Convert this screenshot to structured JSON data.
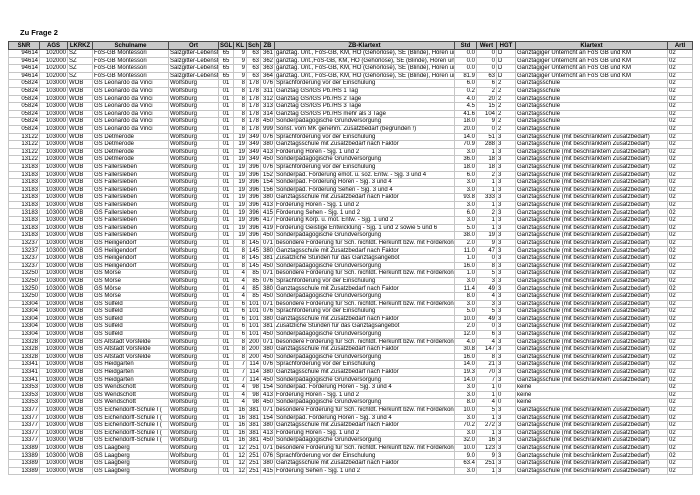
{
  "page": {
    "title": "Zu Frage 2"
  },
  "colors": {
    "header_bg": "#c9c9c9",
    "grid": "#c6c6c6",
    "header_border": "#4a4a4a",
    "text": "#000000",
    "page_bg": "#ffffff"
  },
  "table": {
    "columns": [
      {
        "key": "snr",
        "label": "SNR"
      },
      {
        "key": "ags",
        "label": "AGS"
      },
      {
        "key": "lkrkz",
        "label": "LKRKZ"
      },
      {
        "key": "schulname",
        "label": "Schulname"
      },
      {
        "key": "ort",
        "label": "Ort"
      },
      {
        "key": "sgl",
        "label": "SGL"
      },
      {
        "key": "kl",
        "label": "KL"
      },
      {
        "key": "sch",
        "label": "Sch"
      },
      {
        "key": "zb",
        "label": "ZB"
      },
      {
        "key": "zb_klartext",
        "label": "ZB-Klartext"
      },
      {
        "key": "std",
        "label": "Std"
      },
      {
        "key": "wert",
        "label": "Wert"
      },
      {
        "key": "hgt",
        "label": "HGT"
      },
      {
        "key": "klartext",
        "label": "Klartext"
      },
      {
        "key": "artl",
        "label": "Artl"
      }
    ],
    "rows": [
      [
        "94614",
        "102000",
        "SZ",
        "FöS-GB Montessori",
        "Salzgitter-Lebenstedt",
        "65",
        "9",
        "63",
        "361",
        "ganztäg. Unt., FöS-GB, KM, HÖ (Gehörlose), SE (Blinde), Hören und Sehen",
        "0.0",
        "0",
        "D",
        "Ganztägiger Unterricht an FöS GB und KM",
        "02"
      ],
      [
        "94614",
        "102000",
        "SZ",
        "FöS-GB Montessori",
        "Salzgitter-Lebenstedt",
        "65",
        "9",
        "63",
        "362",
        "ganztäg. Unt.,FöS-GB, KM, HÖ (Gehörlose), SE (Blinde), Hören und Sehen",
        "0.0",
        "0",
        "D",
        "Ganztägiger Unterricht an FöS GB und KM",
        "02"
      ],
      [
        "94614",
        "102000",
        "SZ",
        "FöS-GB Montessori",
        "Salzgitter-Lebenstedt",
        "65",
        "9",
        "63",
        "363",
        "ganztäg. Unt., FöS-GB, KM, HÖ (Gehörlose), SE (Blinde), Hören und Sehen",
        "0.0",
        "0",
        "D",
        "Ganztägiger Unterricht an FöS GB und KM",
        "02"
      ],
      [
        "94614",
        "102000",
        "SZ",
        "FöS-GB Montessori",
        "Salzgitter-Lebenstedt",
        "65",
        "9",
        "63",
        "364",
        "ganztäg. Unt., FöS-GB, KM, HÖ (Gehörlose), SE (Blinde), Hören und Sehen",
        "81.9",
        "63",
        "D",
        "Ganztägiger Unterricht an FöS GB und KM",
        "02"
      ],
      [
        "05824",
        "103000",
        "WOB",
        "GS Leonardo da Vinci",
        "Wolfsburg",
        "01",
        "8",
        "178",
        "076",
        "Sprachförderung vor der Einschulung",
        "6.0",
        "6",
        "2",
        "Ganztagsschule",
        "02"
      ],
      [
        "05824",
        "103000",
        "WOB",
        "GS Leonardo da Vinci",
        "Wolfsburg",
        "01",
        "8",
        "178",
        "311",
        "Ganztag GS/IGS Pb./HS 1 Tag",
        "0.2",
        "2",
        "2",
        "Ganztagsschule",
        "02"
      ],
      [
        "05824",
        "103000",
        "WOB",
        "GS Leonardo da Vinci",
        "Wolfsburg",
        "01",
        "8",
        "178",
        "312",
        "Ganztag GS/IGS Pb./HS 2 Tage",
        "4.0",
        "20",
        "2",
        "Ganztagsschule",
        "02"
      ],
      [
        "05824",
        "103000",
        "WOB",
        "GS Leonardo da Vinci",
        "Wolfsburg",
        "01",
        "8",
        "178",
        "313",
        "Ganztag GS/IGS Pb./HS 3 Tage",
        "4.5",
        "15",
        "2",
        "Ganztagsschule",
        "02"
      ],
      [
        "05824",
        "103000",
        "WOB",
        "GS Leonardo da Vinci",
        "Wolfsburg",
        "01",
        "8",
        "178",
        "314",
        "Ganztag GS/IGS Pb./HS mehr als 3 Tage",
        "41.6",
        "104",
        "2",
        "Ganztagsschule",
        "02"
      ],
      [
        "05824",
        "103000",
        "WOB",
        "GS Leonardo da Vinci",
        "Wolfsburg",
        "01",
        "8",
        "178",
        "450",
        "Sonderpädagogische Grundversorgung",
        "18.0",
        "9",
        "2",
        "Ganztagsschule",
        "02"
      ],
      [
        "05824",
        "103000",
        "WOB",
        "GS Leonardo da Vinci",
        "Wolfsburg",
        "01",
        "8",
        "178",
        "999",
        "Sonst. vom MK genehm. Zusatzbedarf (begründen !)",
        "20.0",
        "0",
        "2",
        "Ganztagsschule",
        "02"
      ],
      [
        "13122",
        "103000",
        "WOB",
        "GS Detmerode",
        "Wolfsburg",
        "01",
        "19",
        "349",
        "076",
        "Sprachförderung vor der Einschulung",
        "14.0",
        "51",
        "3",
        "Ganztagsschule (mit beschränktem Zusatzbedarf)",
        "02"
      ],
      [
        "13122",
        "103000",
        "WOB",
        "GS Detmerode",
        "Wolfsburg",
        "01",
        "19",
        "349",
        "380",
        "Ganztagsschule mit Zusatzbedarf nach Faktor",
        "70.9",
        "288",
        "3",
        "Ganztagsschule (mit beschränktem Zusatzbedarf)",
        "02"
      ],
      [
        "13122",
        "103000",
        "WOB",
        "GS Detmerode",
        "Wolfsburg",
        "01",
        "19",
        "349",
        "413",
        "Förderung Hören - Sjg. 1 und 2",
        "3.0",
        "1",
        "3",
        "Ganztagsschule (mit beschränktem Zusatzbedarf)",
        "02"
      ],
      [
        "13122",
        "103000",
        "WOB",
        "GS Detmerode",
        "Wolfsburg",
        "01",
        "19",
        "349",
        "450",
        "Sonderpädagogische Grundversorgung",
        "36.0",
        "18",
        "3",
        "Ganztagsschule (mit beschränktem Zusatzbedarf)",
        "02"
      ],
      [
        "13183",
        "103000",
        "WOB",
        "GS Fallersleben",
        "Wolfsburg",
        "01",
        "19",
        "396",
        "076",
        "Sprachförderung vor der Einschulung",
        "18.0",
        "18",
        "3",
        "Ganztagsschule (mit beschränktem Zusatzbedarf)",
        "02"
      ],
      [
        "13183",
        "103000",
        "WOB",
        "GS Fallersleben",
        "Wolfsburg",
        "01",
        "19",
        "396",
        "152",
        "Sonderpäd. Förderung emot. u. soz. Entw. - Sjg. 3 und 4",
        "6.0",
        "2",
        "3",
        "Ganztagsschule (mit beschränktem Zusatzbedarf)",
        "02"
      ],
      [
        "13183",
        "103000",
        "WOB",
        "GS Fallersleben",
        "Wolfsburg",
        "01",
        "19",
        "396",
        "154",
        "Sonderpäd. Förderung Hören - Sjg. 3 und 4",
        "3.0",
        "1",
        "3",
        "Ganztagsschule (mit beschränktem Zusatzbedarf)",
        "02"
      ],
      [
        "13183",
        "103000",
        "WOB",
        "GS Fallersleben",
        "Wolfsburg",
        "01",
        "19",
        "396",
        "156",
        "Sonderpäd. Förderung Sehen - Sjg. 3 und 4",
        "3.0",
        "1",
        "3",
        "Ganztagsschule (mit beschränktem Zusatzbedarf)",
        "02"
      ],
      [
        "13183",
        "103000",
        "WOB",
        "GS Fallersleben",
        "Wolfsburg",
        "01",
        "19",
        "396",
        "380",
        "Ganztagsschule mit Zusatzbedarf nach Faktor",
        "93.8",
        "333",
        "3",
        "Ganztagsschule (mit beschränktem Zusatzbedarf)",
        "02"
      ],
      [
        "13183",
        "103000",
        "WOB",
        "GS Fallersleben",
        "Wolfsburg",
        "01",
        "19",
        "396",
        "413",
        "Förderung Hören - Sjg. 1 und 2",
        "3.0",
        "1",
        "3",
        "Ganztagsschule (mit beschränktem Zusatzbedarf)",
        "02"
      ],
      [
        "13183",
        "103000",
        "WOB",
        "GS Fallersleben",
        "Wolfsburg",
        "01",
        "19",
        "396",
        "415",
        "Förderung Sehen - Sjg. 1 und 2",
        "6.0",
        "2",
        "3",
        "Ganztagsschule (mit beschränktem Zusatzbedarf)",
        "02"
      ],
      [
        "13183",
        "103000",
        "WOB",
        "GS Fallersleben",
        "Wolfsburg",
        "01",
        "19",
        "396",
        "417",
        "Förderung Körp. u. mot. Entw. - Sjg. 1 und 2",
        "3.0",
        "1",
        "3",
        "Ganztagsschule (mit beschränktem Zusatzbedarf)",
        "02"
      ],
      [
        "13183",
        "103000",
        "WOB",
        "GS Fallersleben",
        "Wolfsburg",
        "01",
        "19",
        "396",
        "419",
        "Förderung Geistige Entwicklung - Sjg. 1 und 2 sowie 5 und 6",
        "5.0",
        "1",
        "3",
        "Ganztagsschule (mit beschränktem Zusatzbedarf)",
        "02"
      ],
      [
        "13183",
        "103000",
        "WOB",
        "GS Fallersleben",
        "Wolfsburg",
        "01",
        "19",
        "396",
        "450",
        "Sonderpädagogische Grundversorgung",
        "38.0",
        "19",
        "3",
        "Ganztagsschule (mit beschränktem Zusatzbedarf)",
        "02"
      ],
      [
        "13237",
        "103000",
        "WOB",
        "GS Heiligendorf",
        "Wolfsburg",
        "01",
        "8",
        "145",
        "071",
        "besondere Förderung für Sch. nichtdt. Herkunft bzw. mit Förderkonzept",
        "2.0",
        "9",
        "3",
        "Ganztagsschule (mit beschränktem Zusatzbedarf)",
        "02"
      ],
      [
        "13237",
        "103000",
        "WOB",
        "GS Heiligendorf",
        "Wolfsburg",
        "01",
        "8",
        "145",
        "380",
        "Ganztagsschule mit Zusatzbedarf nach Faktor",
        "11.0",
        "47",
        "3",
        "Ganztagsschule (mit beschränktem Zusatzbedarf)",
        "02"
      ],
      [
        "13237",
        "103000",
        "WOB",
        "GS Heiligendorf",
        "Wolfsburg",
        "01",
        "8",
        "145",
        "381",
        "Zusätzliche Stunden für das Ganztagsangebot",
        "1.0",
        "0",
        "3",
        "Ganztagsschule (mit beschränktem Zusatzbedarf)",
        "02"
      ],
      [
        "13237",
        "103000",
        "WOB",
        "GS Heiligendorf",
        "Wolfsburg",
        "01",
        "8",
        "145",
        "450",
        "Sonderpädagogische Grundversorgung",
        "16.0",
        "8",
        "3",
        "Ganztagsschule (mit beschränktem Zusatzbedarf)",
        "02"
      ],
      [
        "13250",
        "103000",
        "WOB",
        "GS Mörse",
        "Wolfsburg",
        "01",
        "4",
        "85",
        "071",
        "besondere Förderung für Sch. nichtdt. Herkunft bzw. mit Förderkonzept",
        "1.0",
        "5",
        "3",
        "Ganztagsschule (mit beschränktem Zusatzbedarf)",
        "02"
      ],
      [
        "13250",
        "103000",
        "WOB",
        "GS Mörse",
        "Wolfsburg",
        "01",
        "4",
        "85",
        "076",
        "Sprachförderung vor der Einschulung",
        "3.0",
        "3",
        "3",
        "Ganztagsschule (mit beschränktem Zusatzbedarf)",
        "02"
      ],
      [
        "13250",
        "103000",
        "WOB",
        "GS Mörse",
        "Wolfsburg",
        "01",
        "4",
        "85",
        "380",
        "Ganztagsschule mit Zusatzbedarf nach Faktor",
        "11.4",
        "49",
        "3",
        "Ganztagsschule (mit beschränktem Zusatzbedarf)",
        "02"
      ],
      [
        "13250",
        "103000",
        "WOB",
        "GS Mörse",
        "Wolfsburg",
        "01",
        "4",
        "85",
        "450",
        "Sonderpädagogische Grundversorgung",
        "8.0",
        "4",
        "3",
        "Ganztagsschule (mit beschränktem Zusatzbedarf)",
        "02"
      ],
      [
        "13304",
        "103000",
        "WOB",
        "GS Sülfeld",
        "Wolfsburg",
        "01",
        "6",
        "101",
        "071",
        "besondere Förderung für Sch. nichtdt. Herkunft bzw. mit Förderkonzept",
        "3.0",
        "3",
        "3",
        "Ganztagsschule (mit beschränktem Zusatzbedarf)",
        "02"
      ],
      [
        "13304",
        "103000",
        "WOB",
        "GS Sülfeld",
        "Wolfsburg",
        "01",
        "6",
        "101",
        "076",
        "Sprachförderung vor der Einschulung",
        "5.0",
        "5",
        "3",
        "Ganztagsschule (mit beschränktem Zusatzbedarf)",
        "02"
      ],
      [
        "13304",
        "103000",
        "WOB",
        "GS Sülfeld",
        "Wolfsburg",
        "01",
        "6",
        "101",
        "380",
        "Ganztagsschule mit Zusatzbedarf nach Faktor",
        "10.0",
        "49",
        "3",
        "Ganztagsschule (mit beschränktem Zusatzbedarf)",
        "02"
      ],
      [
        "13304",
        "103000",
        "WOB",
        "GS Sülfeld",
        "Wolfsburg",
        "01",
        "6",
        "101",
        "381",
        "Zusätzliche Stunden für das Ganztagsangebot",
        "2.0",
        "0",
        "3",
        "Ganztagsschule (mit beschränktem Zusatzbedarf)",
        "02"
      ],
      [
        "13304",
        "103000",
        "WOB",
        "GS Sülfeld",
        "Wolfsburg",
        "01",
        "6",
        "101",
        "450",
        "Sonderpädagogische Grundversorgung",
        "12.0",
        "6",
        "3",
        "Ganztagsschule (mit beschränktem Zusatzbedarf)",
        "02"
      ],
      [
        "13328",
        "103000",
        "WOB",
        "GS Altstadt Vorsfelde",
        "Wolfsburg",
        "01",
        "8",
        "200",
        "071",
        "besondere Förderung für Sch. nichtdt. Herkunft bzw. mit Förderkonzept",
        "4.0",
        "4",
        "3",
        "Ganztagsschule (mit beschränktem Zusatzbedarf)",
        "02"
      ],
      [
        "13328",
        "103000",
        "WOB",
        "GS Altstadt Vorsfelde",
        "Wolfsburg",
        "01",
        "8",
        "200",
        "380",
        "Ganztagsschule mit Zusatzbedarf nach Faktor",
        "30.8",
        "147",
        "3",
        "Ganztagsschule (mit beschränktem Zusatzbedarf)",
        "02"
      ],
      [
        "13328",
        "103000",
        "WOB",
        "GS Altstadt Vorsfelde",
        "Wolfsburg",
        "01",
        "8",
        "200",
        "450",
        "Sonderpädagogische Grundversorgung",
        "16.0",
        "8",
        "3",
        "Ganztagsschule (mit beschränktem Zusatzbedarf)",
        "02"
      ],
      [
        "13341",
        "103000",
        "WOB",
        "GS Heidgarten",
        "Wolfsburg",
        "01",
        "7",
        "114",
        "076",
        "Sprachförderung vor der Einschulung",
        "14.0",
        "21",
        "3",
        "Ganztagsschule (mit beschränktem Zusatzbedarf)",
        "02"
      ],
      [
        "13341",
        "103000",
        "WOB",
        "GS Heidgarten",
        "Wolfsburg",
        "01",
        "7",
        "114",
        "380",
        "Ganztagsschule mit Zusatzbedarf nach Faktor",
        "19.3",
        "70",
        "3",
        "Ganztagsschule (mit beschränktem Zusatzbedarf)",
        "02"
      ],
      [
        "13341",
        "103000",
        "WOB",
        "GS Heidgarten",
        "Wolfsburg",
        "01",
        "7",
        "114",
        "450",
        "Sonderpädagogische Grundversorgung",
        "14.0",
        "7",
        "3",
        "Ganztagsschule (mit beschränktem Zusatzbedarf)",
        "02"
      ],
      [
        "13353",
        "103000",
        "WOB",
        "GS Wendschott",
        "Wolfsburg",
        "01",
        "4",
        "98",
        "154",
        "Sonderpäd. Förderung Hören - Sjg. 3 und 4",
        "3.0",
        "1",
        "0",
        "keine",
        "02"
      ],
      [
        "13353",
        "103000",
        "WOB",
        "GS Wendschott",
        "Wolfsburg",
        "01",
        "4",
        "98",
        "413",
        "Förderung Hören - Sjg. 1 und 2",
        "3.0",
        "1",
        "0",
        "keine",
        "02"
      ],
      [
        "13353",
        "103000",
        "WOB",
        "GS Wendschott",
        "Wolfsburg",
        "01",
        "4",
        "98",
        "450",
        "Sonderpädagogische Grundversorgung",
        "8.0",
        "4",
        "0",
        "keine",
        "02"
      ],
      [
        "13377",
        "103000",
        "WOB",
        "GS Eichendorff-Schule I (",
        "Wolfsburg",
        "01",
        "16",
        "381",
        "071",
        "besondere Förderung für Sch. nichtdt. Herkunft bzw. mit Förderkonzept",
        "10.0",
        "5",
        "3",
        "Ganztagsschule (mit beschränktem Zusatzbedarf)",
        "02"
      ],
      [
        "13377",
        "103000",
        "WOB",
        "GS Eichendorff-Schule I (",
        "Wolfsburg",
        "01",
        "16",
        "381",
        "154",
        "Sonderpäd. Förderung Hören - Sjg. 3 und 4",
        "3.0",
        "1",
        "3",
        "Ganztagsschule (mit beschränktem Zusatzbedarf)",
        "02"
      ],
      [
        "13377",
        "103000",
        "WOB",
        "GS Eichendorff-Schule I (",
        "Wolfsburg",
        "01",
        "16",
        "381",
        "380",
        "Ganztagsschule mit Zusatzbedarf nach Faktor",
        "70.2",
        "272",
        "3",
        "Ganztagsschule (mit beschränktem Zusatzbedarf)",
        "02"
      ],
      [
        "13377",
        "103000",
        "WOB",
        "GS Eichendorff-Schule I (",
        "Wolfsburg",
        "01",
        "16",
        "381",
        "413",
        "Förderung Hören - Sjg. 1 und 2",
        "3.0",
        "1",
        "3",
        "Ganztagsschule (mit beschränktem Zusatzbedarf)",
        "02"
      ],
      [
        "13377",
        "103000",
        "WOB",
        "GS Eichendorff-Schule I (",
        "Wolfsburg",
        "01",
        "16",
        "381",
        "450",
        "Sonderpädagogische Grundversorgung",
        "32.0",
        "16",
        "3",
        "Ganztagsschule (mit beschränktem Zusatzbedarf)",
        "02"
      ],
      [
        "13389",
        "103000",
        "WOB",
        "GS Laagberg",
        "Wolfsburg",
        "01",
        "12",
        "251",
        "071",
        "besondere Förderung für Sch. nichtdt. Herkunft bzw. mit Förderkonzept",
        "10.0",
        "123",
        "3",
        "Ganztagsschule (mit beschränktem Zusatzbedarf)",
        "02"
      ],
      [
        "13389",
        "103000",
        "WOB",
        "GS Laagberg",
        "Wolfsburg",
        "01",
        "12",
        "251",
        "076",
        "Sprachförderung vor der Einschulung",
        "9.0",
        "9",
        "3",
        "Ganztagsschule (mit beschränktem Zusatzbedarf)",
        "02"
      ],
      [
        "13389",
        "103000",
        "WOB",
        "GS Laagberg",
        "Wolfsburg",
        "01",
        "12",
        "251",
        "380",
        "Ganztagsschule mit Zusatzbedarf nach Faktor",
        "63.4",
        "251",
        "3",
        "Ganztagsschule (mit beschränktem Zusatzbedarf)",
        "02"
      ],
      [
        "13389",
        "103000",
        "WOB",
        "GS Laagberg",
        "Wolfsburg",
        "01",
        "12",
        "251",
        "415",
        "Förderung Sehen - Sjg. 1 und 2",
        "3.0",
        "1",
        "3",
        "Ganztagsschule (mit beschränktem Zusatzbedarf)",
        "02"
      ]
    ]
  }
}
